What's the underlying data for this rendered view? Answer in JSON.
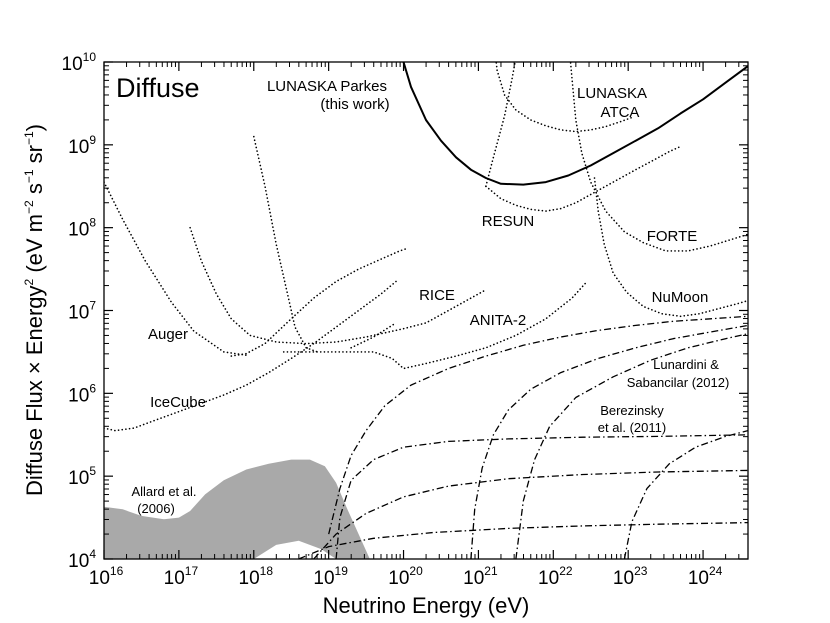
{
  "chart_data": {
    "type": "line",
    "scale": "log-log",
    "panel_title": "Diffuse",
    "xlabel": "Neutrino Energy (eV)",
    "ylabel_parts": {
      "a": "Diffuse Flux × Energy",
      "a_sup": "2",
      "b": " (eV m",
      "b_sup": "−2",
      "c": " s",
      "c_sup": "−1",
      "d": " sr",
      "d_sup": "−1",
      "e": ")"
    },
    "log10_xlim": [
      16,
      24.6
    ],
    "log10_ylim": [
      4,
      10
    ],
    "x_ticks": [
      {
        "base": "10",
        "exp": "16",
        "log": 16
      },
      {
        "base": "10",
        "exp": "17",
        "log": 17
      },
      {
        "base": "10",
        "exp": "18",
        "log": 18
      },
      {
        "base": "10",
        "exp": "19",
        "log": 19
      },
      {
        "base": "10",
        "exp": "20",
        "log": 20
      },
      {
        "base": "10",
        "exp": "21",
        "log": 21
      },
      {
        "base": "10",
        "exp": "22",
        "log": 22
      },
      {
        "base": "10",
        "exp": "23",
        "log": 23
      },
      {
        "base": "10",
        "exp": "24",
        "log": 24
      }
    ],
    "y_ticks": [
      {
        "base": "10",
        "exp": "4",
        "log": 4
      },
      {
        "base": "10",
        "exp": "5",
        "log": 5
      },
      {
        "base": "10",
        "exp": "6",
        "log": 6
      },
      {
        "base": "10",
        "exp": "7",
        "log": 7
      },
      {
        "base": "10",
        "exp": "8",
        "log": 8
      },
      {
        "base": "10",
        "exp": "9",
        "log": 9
      },
      {
        "base": "10",
        "exp": "10",
        "log": 10
      }
    ],
    "series": [
      {
        "id": "lunaska-parkes",
        "style": "solid",
        "label_lines": [
          "LUNASKA Parkes",
          "(this work)"
        ],
        "points": [
          [
            19.9,
            10.3
          ],
          [
            20.1,
            9.7
          ],
          [
            20.3,
            9.3
          ],
          [
            20.5,
            9.05
          ],
          [
            20.7,
            8.85
          ],
          [
            20.9,
            8.7
          ],
          [
            21.1,
            8.6
          ],
          [
            21.3,
            8.53
          ],
          [
            21.6,
            8.52
          ],
          [
            21.9,
            8.55
          ],
          [
            22.2,
            8.63
          ],
          [
            22.5,
            8.75
          ],
          [
            22.8,
            8.9
          ],
          [
            23.1,
            9.05
          ],
          [
            23.4,
            9.2
          ],
          [
            23.7,
            9.38
          ],
          [
            24.0,
            9.55
          ],
          [
            24.3,
            9.75
          ],
          [
            24.6,
            9.95
          ]
        ]
      },
      {
        "id": "lunaska-atca",
        "style": "dotted",
        "label_lines": [
          "LUNASKA",
          "ATCA"
        ],
        "points": [
          [
            21.2,
            10.3
          ],
          [
            21.25,
            9.9
          ],
          [
            21.35,
            9.6
          ],
          [
            21.5,
            9.42
          ],
          [
            21.7,
            9.3
          ],
          [
            21.9,
            9.23
          ],
          [
            22.1,
            9.18
          ],
          [
            22.3,
            9.16
          ],
          [
            22.5,
            9.18
          ],
          [
            22.7,
            9.22
          ],
          [
            22.9,
            9.28
          ],
          [
            23.05,
            9.33
          ]
        ]
      },
      {
        "id": "resun",
        "style": "dotted",
        "label_lines": [
          "RESUN"
        ],
        "points": [
          [
            21.1,
            8.5
          ],
          [
            21.3,
            8.35
          ],
          [
            21.5,
            8.27
          ],
          [
            21.7,
            8.22
          ],
          [
            21.9,
            8.2
          ],
          [
            22.1,
            8.23
          ],
          [
            22.3,
            8.3
          ],
          [
            22.5,
            8.4
          ],
          [
            22.8,
            8.55
          ],
          [
            23.1,
            8.7
          ],
          [
            23.35,
            8.82
          ],
          [
            23.55,
            8.92
          ],
          [
            23.7,
            8.98
          ]
        ]
      },
      {
        "id": "resun-steep",
        "style": "dotted",
        "label_lines": [],
        "points": [
          [
            21.1,
            8.5
          ],
          [
            21.2,
            8.85
          ],
          [
            21.35,
            9.35
          ],
          [
            21.45,
            9.8
          ],
          [
            21.55,
            10.3
          ]
        ]
      },
      {
        "id": "forte",
        "style": "dotted",
        "label_lines": [
          "FORTE"
        ],
        "points": [
          [
            22.2,
            10.3
          ],
          [
            22.25,
            9.8
          ],
          [
            22.3,
            9.3
          ],
          [
            22.38,
            8.9
          ],
          [
            22.5,
            8.55
          ],
          [
            22.7,
            8.2
          ],
          [
            22.95,
            7.95
          ],
          [
            23.2,
            7.82
          ],
          [
            23.5,
            7.72
          ],
          [
            23.8,
            7.72
          ],
          [
            24.1,
            7.78
          ],
          [
            24.35,
            7.85
          ],
          [
            24.6,
            7.92
          ]
        ]
      },
      {
        "id": "numoon",
        "style": "dotted",
        "label_lines": [
          "NuMoon"
        ],
        "points": [
          [
            22.55,
            8.6
          ],
          [
            22.6,
            8.2
          ],
          [
            22.68,
            7.8
          ],
          [
            22.8,
            7.45
          ],
          [
            22.98,
            7.22
          ],
          [
            23.2,
            7.05
          ],
          [
            23.45,
            6.96
          ],
          [
            23.7,
            6.93
          ],
          [
            23.95,
            6.96
          ],
          [
            24.2,
            7.02
          ],
          [
            24.45,
            7.08
          ],
          [
            24.6,
            7.12
          ]
        ]
      },
      {
        "id": "anita-2",
        "style": "dotted",
        "label_lines": [
          "ANITA-2"
        ],
        "points": [
          [
            18.4,
            6.5
          ],
          [
            18.7,
            6.5
          ],
          [
            19.2,
            6.5
          ],
          [
            19.6,
            6.5
          ],
          [
            19.85,
            6.42
          ],
          [
            20.0,
            6.3
          ],
          [
            20.3,
            6.36
          ],
          [
            20.7,
            6.45
          ],
          [
            21.1,
            6.55
          ],
          [
            21.5,
            6.7
          ],
          [
            21.9,
            6.9
          ],
          [
            22.25,
            7.15
          ],
          [
            22.45,
            7.35
          ]
        ]
      },
      {
        "id": "anita-2-steep",
        "style": "dotted",
        "label_lines": [],
        "points": [
          [
            18.0,
            9.1
          ],
          [
            18.15,
            8.5
          ],
          [
            18.3,
            7.8
          ],
          [
            18.45,
            7.2
          ],
          [
            18.55,
            6.8
          ],
          [
            18.7,
            6.55
          ],
          [
            18.85,
            6.5
          ]
        ]
      },
      {
        "id": "rice",
        "style": "dotted",
        "label_lines": [
          "RICE"
        ],
        "points": [
          [
            17.15,
            8.0
          ],
          [
            17.3,
            7.6
          ],
          [
            17.5,
            7.2
          ],
          [
            17.7,
            6.9
          ],
          [
            17.95,
            6.7
          ],
          [
            18.3,
            6.62
          ],
          [
            18.7,
            6.6
          ],
          [
            19.1,
            6.62
          ],
          [
            19.5,
            6.68
          ],
          [
            20.0,
            6.78
          ],
          [
            20.3,
            6.85
          ],
          [
            20.6,
            7.0
          ],
          [
            20.9,
            7.15
          ],
          [
            21.1,
            7.25
          ]
        ]
      },
      {
        "id": "auger",
        "style": "dotted",
        "label_lines": [
          "Auger"
        ],
        "points": [
          [
            17.7,
            6.45
          ],
          [
            17.9,
            6.48
          ],
          [
            18.15,
            6.6
          ],
          [
            18.5,
            6.9
          ],
          [
            18.8,
            7.15
          ],
          [
            19.1,
            7.35
          ],
          [
            19.4,
            7.5
          ],
          [
            19.7,
            7.62
          ],
          [
            19.95,
            7.72
          ],
          [
            20.05,
            7.75
          ]
        ]
      },
      {
        "id": "auger-steep",
        "style": "dotted",
        "label_lines": [],
        "points": [
          [
            16.0,
            8.55
          ],
          [
            16.25,
            8.1
          ],
          [
            16.55,
            7.6
          ],
          [
            16.9,
            7.1
          ],
          [
            17.2,
            6.75
          ],
          [
            17.6,
            6.5
          ],
          [
            17.9,
            6.46
          ]
        ]
      },
      {
        "id": "auger-short",
        "style": "dotted",
        "label_lines": [],
        "points": [
          [
            19.3,
            6.55
          ],
          [
            19.6,
            6.68
          ],
          [
            19.9,
            6.85
          ]
        ]
      },
      {
        "id": "icecube",
        "style": "dotted",
        "label_lines": [
          "IceCube"
        ],
        "points": [
          [
            16.0,
            5.58
          ],
          [
            16.15,
            5.55
          ],
          [
            16.4,
            5.58
          ],
          [
            16.7,
            5.68
          ],
          [
            17.0,
            5.78
          ],
          [
            17.3,
            5.88
          ],
          [
            17.6,
            5.98
          ],
          [
            17.9,
            6.1
          ],
          [
            18.2,
            6.25
          ],
          [
            18.5,
            6.42
          ],
          [
            18.8,
            6.6
          ],
          [
            19.1,
            6.8
          ],
          [
            19.4,
            7.0
          ],
          [
            19.7,
            7.2
          ],
          [
            19.9,
            7.35
          ]
        ]
      },
      {
        "id": "lunardini-sabancilar",
        "style": "dashdot",
        "label_lines": [
          "Lunardini &",
          "Sabancilar (2012)"
        ],
        "points": [
          [
            19.0,
            4.3
          ],
          [
            19.15,
            4.85
          ],
          [
            19.3,
            5.25
          ],
          [
            19.5,
            5.55
          ],
          [
            19.75,
            5.85
          ],
          [
            20.1,
            6.1
          ],
          [
            20.6,
            6.3
          ],
          [
            21.1,
            6.45
          ],
          [
            21.6,
            6.58
          ],
          [
            22.1,
            6.68
          ],
          [
            22.6,
            6.76
          ],
          [
            23.1,
            6.82
          ],
          [
            23.6,
            6.87
          ],
          [
            24.1,
            6.9
          ],
          [
            24.6,
            6.93
          ]
        ]
      },
      {
        "id": "lunardini-2",
        "style": "dashdot",
        "label_lines": [],
        "points": [
          [
            20.9,
            4.0
          ],
          [
            20.95,
            4.6
          ],
          [
            21.05,
            5.1
          ],
          [
            21.2,
            5.5
          ],
          [
            21.4,
            5.8
          ],
          [
            21.7,
            6.05
          ],
          [
            22.1,
            6.25
          ],
          [
            22.6,
            6.42
          ],
          [
            23.1,
            6.55
          ],
          [
            23.6,
            6.66
          ],
          [
            24.1,
            6.74
          ],
          [
            24.6,
            6.82
          ]
        ]
      },
      {
        "id": "lunardini-3",
        "style": "dashdot",
        "label_lines": [],
        "points": [
          [
            21.5,
            4.0
          ],
          [
            21.6,
            4.7
          ],
          [
            21.75,
            5.2
          ],
          [
            21.95,
            5.6
          ],
          [
            22.3,
            5.95
          ],
          [
            22.8,
            6.2
          ],
          [
            23.3,
            6.4
          ],
          [
            23.8,
            6.55
          ],
          [
            24.3,
            6.66
          ],
          [
            24.6,
            6.72
          ]
        ]
      },
      {
        "id": "berezinsky",
        "style": "dashdot",
        "label_lines": [
          "Berezinsky",
          "et al. (2011)"
        ],
        "points": [
          [
            19.1,
            4.0
          ],
          [
            19.15,
            4.5
          ],
          [
            19.3,
            4.95
          ],
          [
            19.6,
            5.2
          ],
          [
            20.0,
            5.35
          ],
          [
            20.6,
            5.42
          ],
          [
            21.4,
            5.45
          ],
          [
            22.4,
            5.47
          ],
          [
            23.4,
            5.48
          ],
          [
            24.6,
            5.5
          ]
        ]
      },
      {
        "id": "berezinsky-2",
        "style": "dashdot",
        "label_lines": [],
        "points": [
          [
            18.8,
            4.0
          ],
          [
            19.1,
            4.3
          ],
          [
            19.5,
            4.55
          ],
          [
            20.0,
            4.75
          ],
          [
            20.6,
            4.88
          ],
          [
            21.4,
            4.97
          ],
          [
            22.4,
            5.02
          ],
          [
            23.4,
            5.05
          ],
          [
            24.6,
            5.07
          ]
        ]
      },
      {
        "id": "berezinsky-3",
        "style": "dashdot",
        "label_lines": [],
        "points": [
          [
            18.6,
            4.0
          ],
          [
            19.0,
            4.15
          ],
          [
            19.6,
            4.25
          ],
          [
            20.4,
            4.32
          ],
          [
            21.4,
            4.37
          ],
          [
            22.4,
            4.4
          ],
          [
            23.4,
            4.42
          ],
          [
            24.6,
            4.44
          ]
        ]
      },
      {
        "id": "berezinsky-4",
        "style": "dashdot",
        "label_lines": [],
        "points": [
          [
            22.95,
            4.0
          ],
          [
            23.05,
            4.45
          ],
          [
            23.25,
            4.85
          ],
          [
            23.55,
            5.15
          ],
          [
            23.9,
            5.35
          ],
          [
            24.3,
            5.48
          ],
          [
            24.6,
            5.55
          ]
        ]
      }
    ],
    "band": {
      "id": "allard-2006",
      "label_lines": [
        "Allard et al.",
        "(2006)"
      ],
      "color": "#a9a9a9",
      "upper": [
        [
          16.0,
          4.63
        ],
        [
          16.25,
          4.6
        ],
        [
          16.5,
          4.52
        ],
        [
          16.8,
          4.48
        ],
        [
          17.0,
          4.5
        ],
        [
          17.15,
          4.58
        ],
        [
          17.35,
          4.78
        ],
        [
          17.6,
          4.95
        ],
        [
          17.9,
          5.08
        ],
        [
          18.2,
          5.15
        ],
        [
          18.5,
          5.2
        ],
        [
          18.75,
          5.2
        ],
        [
          18.95,
          5.12
        ],
        [
          19.1,
          4.92
        ],
        [
          19.25,
          4.6
        ],
        [
          19.4,
          4.3
        ],
        [
          19.5,
          4.1
        ],
        [
          19.55,
          4.0
        ]
      ],
      "lower": [
        [
          16.0,
          4.0
        ],
        [
          17.0,
          4.0
        ],
        [
          17.6,
          4.0
        ],
        [
          18.0,
          4.0
        ],
        [
          18.3,
          4.17
        ],
        [
          18.6,
          4.22
        ],
        [
          18.9,
          4.12
        ],
        [
          19.1,
          4.0
        ]
      ]
    }
  }
}
